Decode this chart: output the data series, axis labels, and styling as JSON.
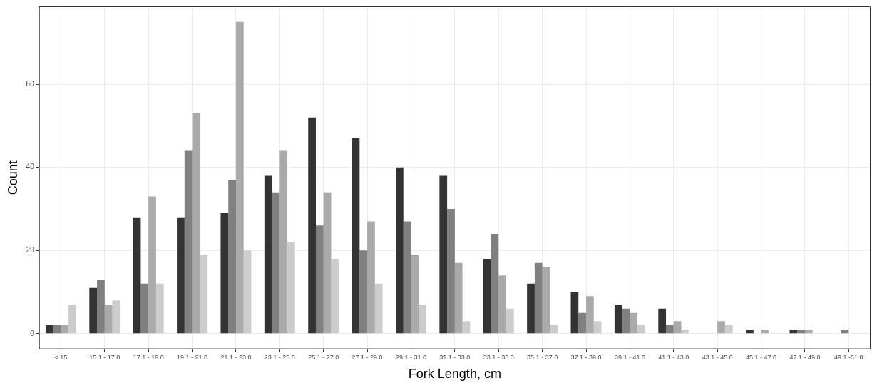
{
  "chart_data": {
    "type": "bar",
    "xlabel": "Fork Length, cm",
    "ylabel": "Count",
    "categories": [
      "< 15",
      "15.1 - 17.0",
      "17.1 - 19.0",
      "19.1 - 21.0",
      "21.1 - 23.0",
      "23.1 - 25.0",
      "25.1 - 27.0",
      "27.1 - 29.0",
      "29.1 - 31.0",
      "31.1 - 33.0",
      "33.1 - 35.0",
      "35.1 - 37.0",
      "37.1 - 39.0",
      "39.1 - 41.0",
      "41.1 - 43.0",
      "43.1 - 45.0",
      "45.1 - 47.0",
      "47.1 - 49.0",
      "49.1 -51.0"
    ],
    "series": [
      {
        "color": "#333333",
        "values": [
          2,
          11,
          28,
          28,
          29,
          38,
          52,
          47,
          40,
          38,
          18,
          12,
          10,
          7,
          6,
          null,
          1,
          1,
          null
        ]
      },
      {
        "color": "#808080",
        "values": [
          2,
          13,
          12,
          44,
          37,
          34,
          26,
          20,
          27,
          30,
          24,
          17,
          5,
          6,
          2,
          null,
          null,
          1,
          1
        ]
      },
      {
        "color": "#aaaaaa",
        "values": [
          2,
          7,
          33,
          53,
          75,
          44,
          34,
          27,
          19,
          17,
          14,
          16,
          9,
          5,
          3,
          3,
          1,
          1,
          null
        ]
      },
      {
        "color": "#cccccc",
        "values": [
          7,
          8,
          12,
          19,
          20,
          22,
          18,
          12,
          7,
          3,
          6,
          2,
          3,
          2,
          1,
          2,
          null,
          null,
          null
        ]
      }
    ],
    "ylim": [
      -3.75,
      78.75
    ],
    "yticks": [
      0,
      20,
      40,
      60
    ],
    "grid": true,
    "legend": false
  }
}
